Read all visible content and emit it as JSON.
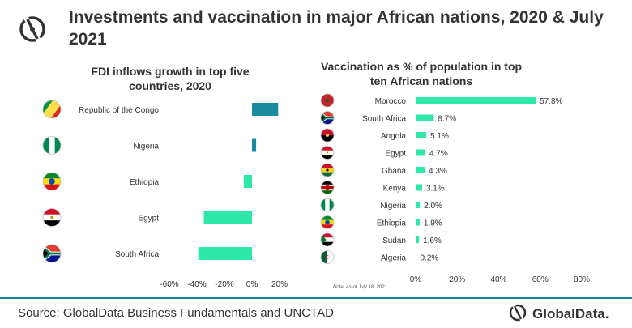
{
  "header": {
    "title": "Investments and vaccination in major African nations, 2020 & July 2021"
  },
  "footer": {
    "source": "Source: GlobalData Business Fundamentals and UNCTAD",
    "brand": "GlobalData."
  },
  "note": "Note: As of July 18, 2021",
  "colors": {
    "fdi_bar": "#1a8a9e",
    "fdi_bar_negative": "#2de8a8",
    "vax_bar": "#2de8a8",
    "divider": "#0e8a9d"
  },
  "chart_data": [
    {
      "type": "bar",
      "orientation": "horizontal",
      "title": "FDI inflows growth in top five countries, 2020",
      "categories": [
        "Republic of the Congo",
        "Nigeria",
        "Ethiopia",
        "Egypt",
        "South Africa"
      ],
      "values": [
        19,
        3,
        -6,
        -35,
        -39
      ],
      "unit": "%",
      "xlim": [
        -60,
        20
      ],
      "xticks": [
        "-60%",
        "-40%",
        "-20%",
        "0%",
        "20%"
      ],
      "flag_icons": [
        "congo-flag-icon",
        "nigeria-flag-icon",
        "ethiopia-flag-icon",
        "egypt-flag-icon",
        "south-africa-flag-icon"
      ]
    },
    {
      "type": "bar",
      "orientation": "horizontal",
      "title": "Vaccination as % of population in top ten African nations",
      "categories": [
        "Morocco",
        "South Africa",
        "Angola",
        "Egypt",
        "Ghana",
        "Kenya",
        "Nigeria",
        "Ethiopia",
        "Sudan",
        "Algeria"
      ],
      "values": [
        57.8,
        8.7,
        5.1,
        4.7,
        4.3,
        3.1,
        2.0,
        1.9,
        1.6,
        0.2
      ],
      "value_labels": [
        "57.8%",
        "8.7%",
        "5.1%",
        "4.7%",
        "4.3%",
        "3.1%",
        "2.0%",
        "1.9%",
        "1.6%",
        "0.2%"
      ],
      "xlim": [
        0,
        80
      ],
      "xticks": [
        "0%",
        "20%",
        "40%",
        "60%",
        "80%"
      ],
      "flag_icons": [
        "morocco-flag-icon",
        "south-africa-flag-icon",
        "angola-flag-icon",
        "egypt-flag-icon",
        "ghana-flag-icon",
        "kenya-flag-icon",
        "nigeria-flag-icon",
        "ethiopia-flag-icon",
        "sudan-flag-icon",
        "algeria-flag-icon"
      ]
    }
  ]
}
